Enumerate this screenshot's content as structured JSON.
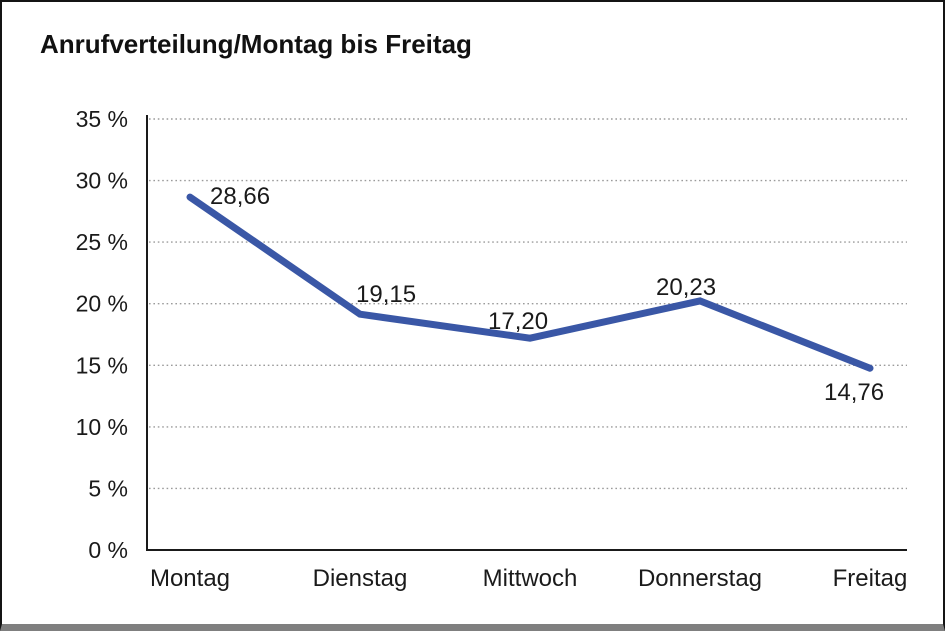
{
  "frame": {
    "background": "#ffffff",
    "border_color": "#141414",
    "bottom_bar_color": "#7f7f7f"
  },
  "chart_data": {
    "type": "line",
    "title": "Anrufverteilung/Montag bis Freitag",
    "categories": [
      "Montag",
      "Dienstag",
      "Mittwoch",
      "Donnerstag",
      "Freitag"
    ],
    "values": [
      28.66,
      19.15,
      17.2,
      20.23,
      14.76
    ],
    "point_labels": [
      "28,66",
      "19,15",
      "17,20",
      "20,23",
      "14,76"
    ],
    "xlabel": "",
    "ylabel": "",
    "ylim": [
      0,
      35
    ],
    "ytick_step": 5,
    "ytick_labels": [
      "0 %",
      "5 %",
      "10 %",
      "15 %",
      "20 %",
      "25 %",
      "30 %",
      "35 %"
    ],
    "grid": "horizontal-dotted",
    "legend": "none",
    "line_color": "#3a57a6",
    "axis_color": "#1a1a1a",
    "grid_color": "#9b9b9b",
    "text_color": "#1a1a1a"
  }
}
